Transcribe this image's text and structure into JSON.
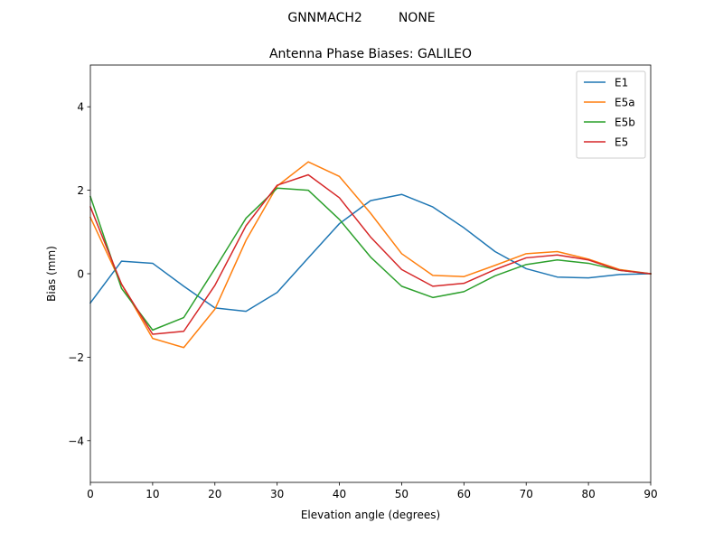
{
  "chart_data": {
    "type": "line",
    "suptitle": "GNNMACH2         NONE",
    "title": "Antenna Phase Biases: GALILEO",
    "xlabel": "Elevation angle (degrees)",
    "ylabel": "Bias (mm)",
    "xlim": [
      0,
      90
    ],
    "ylim": [
      -5,
      5
    ],
    "xticks": [
      0,
      10,
      20,
      30,
      40,
      50,
      60,
      70,
      80,
      90
    ],
    "yticks": [
      -4,
      -2,
      0,
      2,
      4
    ],
    "ytick_labels": [
      "−4",
      "−2",
      "0",
      "2",
      "4"
    ],
    "legend_position": "top-right",
    "x": [
      0,
      5,
      10,
      15,
      20,
      25,
      30,
      35,
      40,
      45,
      50,
      55,
      60,
      65,
      70,
      75,
      80,
      85,
      90
    ],
    "series": [
      {
        "name": "E1",
        "color": "#1f77b4",
        "values": [
          -0.7,
          0.3,
          0.25,
          -0.3,
          -0.82,
          -0.9,
          -0.45,
          0.38,
          1.2,
          1.75,
          1.9,
          1.6,
          1.1,
          0.53,
          0.12,
          -0.08,
          -0.1,
          -0.02,
          0.0
        ]
      },
      {
        "name": "E5a",
        "color": "#ff7f0e",
        "values": [
          1.35,
          -0.25,
          -1.55,
          -1.77,
          -0.85,
          0.8,
          2.1,
          2.68,
          2.33,
          1.45,
          0.48,
          -0.04,
          -0.07,
          0.2,
          0.48,
          0.53,
          0.35,
          0.1,
          0.0
        ]
      },
      {
        "name": "E5b",
        "color": "#2ca02c",
        "values": [
          1.85,
          -0.35,
          -1.35,
          -1.05,
          0.12,
          1.33,
          2.05,
          2.0,
          1.3,
          0.4,
          -0.3,
          -0.57,
          -0.43,
          -0.05,
          0.22,
          0.33,
          0.25,
          0.08,
          0.0
        ]
      },
      {
        "name": "E5",
        "color": "#d62728",
        "values": [
          1.6,
          -0.25,
          -1.45,
          -1.38,
          -0.28,
          1.15,
          2.12,
          2.37,
          1.82,
          0.88,
          0.1,
          -0.3,
          -0.23,
          0.1,
          0.38,
          0.45,
          0.33,
          0.08,
          0.0
        ]
      }
    ]
  }
}
